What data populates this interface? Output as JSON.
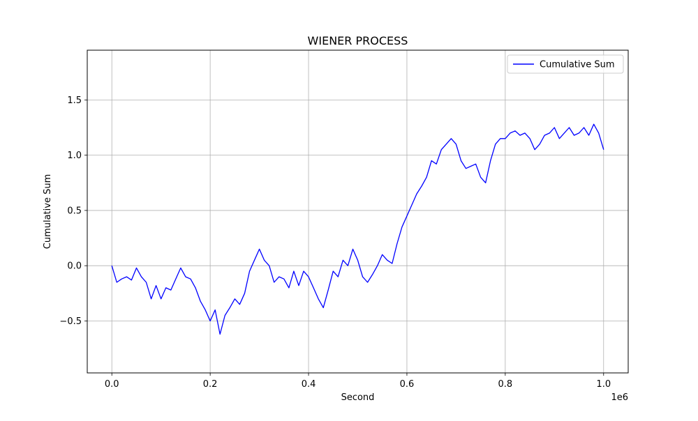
{
  "chart_data": {
    "type": "line",
    "title": "WIENER PROCESS",
    "xlabel": "Second",
    "ylabel": "Cumulative Sum",
    "x_offset_text": "1e6",
    "xlim": [
      -0.05,
      1.05
    ],
    "ylim": [
      -0.97,
      1.95
    ],
    "x_ticks": [
      0.0,
      0.2,
      0.4,
      0.6,
      0.8,
      1.0
    ],
    "x_tick_labels": [
      "0.0",
      "0.2",
      "0.4",
      "0.6",
      "0.8",
      "1.0"
    ],
    "y_ticks": [
      -0.5,
      0.0,
      0.5,
      1.0,
      1.5
    ],
    "y_tick_labels": [
      "−0.5",
      "0.0",
      "0.5",
      "1.0",
      "1.5"
    ],
    "grid": true,
    "legend_position": "top-right",
    "series": [
      {
        "name": "Cumulative Sum",
        "color": "#0000ff",
        "x": [
          0.0,
          0.01,
          0.02,
          0.03,
          0.04,
          0.05,
          0.06,
          0.07,
          0.08,
          0.09,
          0.1,
          0.11,
          0.12,
          0.13,
          0.14,
          0.15,
          0.16,
          0.17,
          0.18,
          0.19,
          0.2,
          0.21,
          0.22,
          0.23,
          0.24,
          0.25,
          0.26,
          0.27,
          0.28,
          0.29,
          0.3,
          0.31,
          0.32,
          0.33,
          0.34,
          0.35,
          0.36,
          0.37,
          0.38,
          0.39,
          0.4,
          0.41,
          0.42,
          0.43,
          0.44,
          0.45,
          0.46,
          0.47,
          0.48,
          0.49,
          0.5,
          0.51,
          0.52,
          0.53,
          0.54,
          0.55,
          0.56,
          0.57,
          0.58,
          0.59,
          0.6,
          0.61,
          0.62,
          0.63,
          0.64,
          0.65,
          0.66,
          0.67,
          0.68,
          0.69,
          0.7,
          0.71,
          0.72,
          0.73,
          0.74,
          0.75,
          0.76,
          0.77,
          0.78,
          0.79,
          0.8,
          0.81,
          0.82,
          0.83,
          0.84,
          0.85,
          0.86,
          0.87,
          0.88,
          0.89,
          0.9,
          0.91,
          0.92,
          0.93,
          0.94,
          0.95,
          0.96,
          0.97,
          0.98,
          0.99,
          1.0
        ],
        "values": [
          0.0,
          -0.15,
          -0.12,
          -0.1,
          -0.13,
          -0.02,
          -0.1,
          -0.15,
          -0.3,
          -0.18,
          -0.3,
          -0.2,
          -0.22,
          -0.12,
          -0.02,
          -0.1,
          -0.12,
          -0.2,
          -0.32,
          -0.4,
          -0.5,
          -0.4,
          -0.62,
          -0.45,
          -0.38,
          -0.3,
          -0.35,
          -0.25,
          -0.05,
          0.05,
          0.15,
          0.05,
          0.0,
          -0.15,
          -0.1,
          -0.12,
          -0.2,
          -0.05,
          -0.18,
          -0.05,
          -0.1,
          -0.2,
          -0.3,
          -0.38,
          -0.22,
          -0.05,
          -0.1,
          0.05,
          0.0,
          0.15,
          0.05,
          -0.1,
          -0.15,
          -0.08,
          0.0,
          0.1,
          0.05,
          0.02,
          0.2,
          0.35,
          0.45,
          0.55,
          0.65,
          0.72,
          0.8,
          0.95,
          0.92,
          1.05,
          1.1,
          1.15,
          1.1,
          0.95,
          0.88,
          0.9,
          0.92,
          0.8,
          0.75,
          0.95,
          1.1,
          1.15,
          1.15,
          1.2,
          1.22,
          1.18,
          1.2,
          1.15,
          1.05,
          1.1,
          1.18,
          1.2,
          1.25,
          1.15,
          1.2,
          1.25,
          1.18,
          1.2,
          1.25,
          1.18,
          1.28,
          1.2,
          1.05
        ]
      }
    ]
  }
}
